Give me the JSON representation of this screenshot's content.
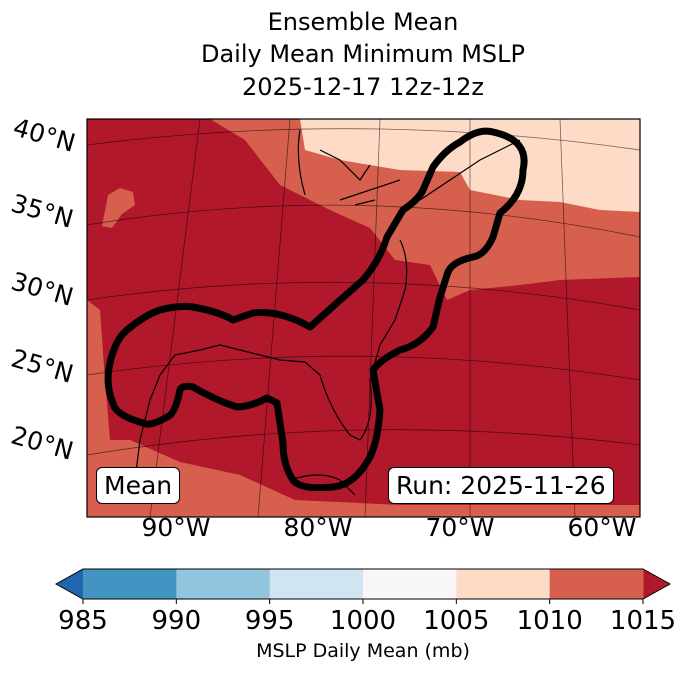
{
  "title": {
    "line1": "Ensemble Mean",
    "line2": "Daily Mean Minimum MSLP",
    "line3": "2025-12-17 12z-12z"
  },
  "map": {
    "lat_labels": [
      "40°N",
      "35°N",
      "30°N",
      "25°N",
      "20°N"
    ],
    "lon_labels": [
      "90°W",
      "80°W",
      "70°W",
      "60°W"
    ],
    "left_box": "Mean",
    "right_box": "Run: 2025-11-26"
  },
  "chart_data": {
    "type": "heatmap",
    "title": "Ensemble Mean Daily Mean Minimum MSLP 2025-12-17 12z-12z",
    "variable": "MSLP Daily Mean (mb)",
    "lat_ticks": [
      "40°N",
      "35°N",
      "30°N",
      "25°N",
      "20°N"
    ],
    "lon_ticks": [
      "90°W",
      "80°W",
      "70°W",
      "60°W"
    ],
    "colorbar": {
      "label": "MSLP Daily Mean (mb)",
      "ticks": [
        "985",
        "990",
        "995",
        "1000",
        "1005",
        "1010",
        "1015"
      ],
      "bin_colors": [
        "#4393c3",
        "#92c5de",
        "#d1e5f0",
        "#f7f7f7",
        "#fddbc7",
        "#d6604d"
      ],
      "under_color": "#2166ac",
      "over_color": "#b2182b",
      "extend": "both"
    },
    "contour_description_color": "#000000"
  }
}
